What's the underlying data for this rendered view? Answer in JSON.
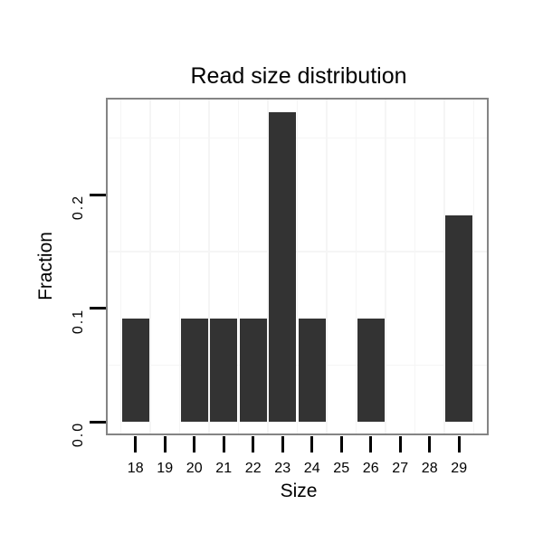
{
  "chart_data": {
    "type": "bar",
    "title": "Read size distribution",
    "xlabel": "Size",
    "ylabel": "Fraction",
    "categories": [
      "18",
      "19",
      "20",
      "21",
      "22",
      "23",
      "24",
      "25",
      "26",
      "27",
      "28",
      "29"
    ],
    "values": [
      0.0909,
      0,
      0.0909,
      0.0909,
      0.0909,
      0.2727,
      0.0909,
      0,
      0.0909,
      0,
      0,
      0.1818
    ],
    "ytick_values": [
      0.0,
      0.1,
      0.2
    ],
    "ytick_labels": [
      "0.0",
      "0.1",
      "0.2"
    ],
    "ylim": [
      -0.012,
      0.285
    ],
    "y_minor_gridlines": [
      0.05,
      0.15,
      0.25
    ],
    "x_minor_gridlines": "between-categories",
    "grid": "minor-only",
    "legend": "none",
    "colors": {
      "bar": "#333333",
      "panel_border": "#848484",
      "gridline": "#f5f5f5",
      "tick": "#000000",
      "text": "#000000",
      "background": "#ffffff"
    }
  }
}
